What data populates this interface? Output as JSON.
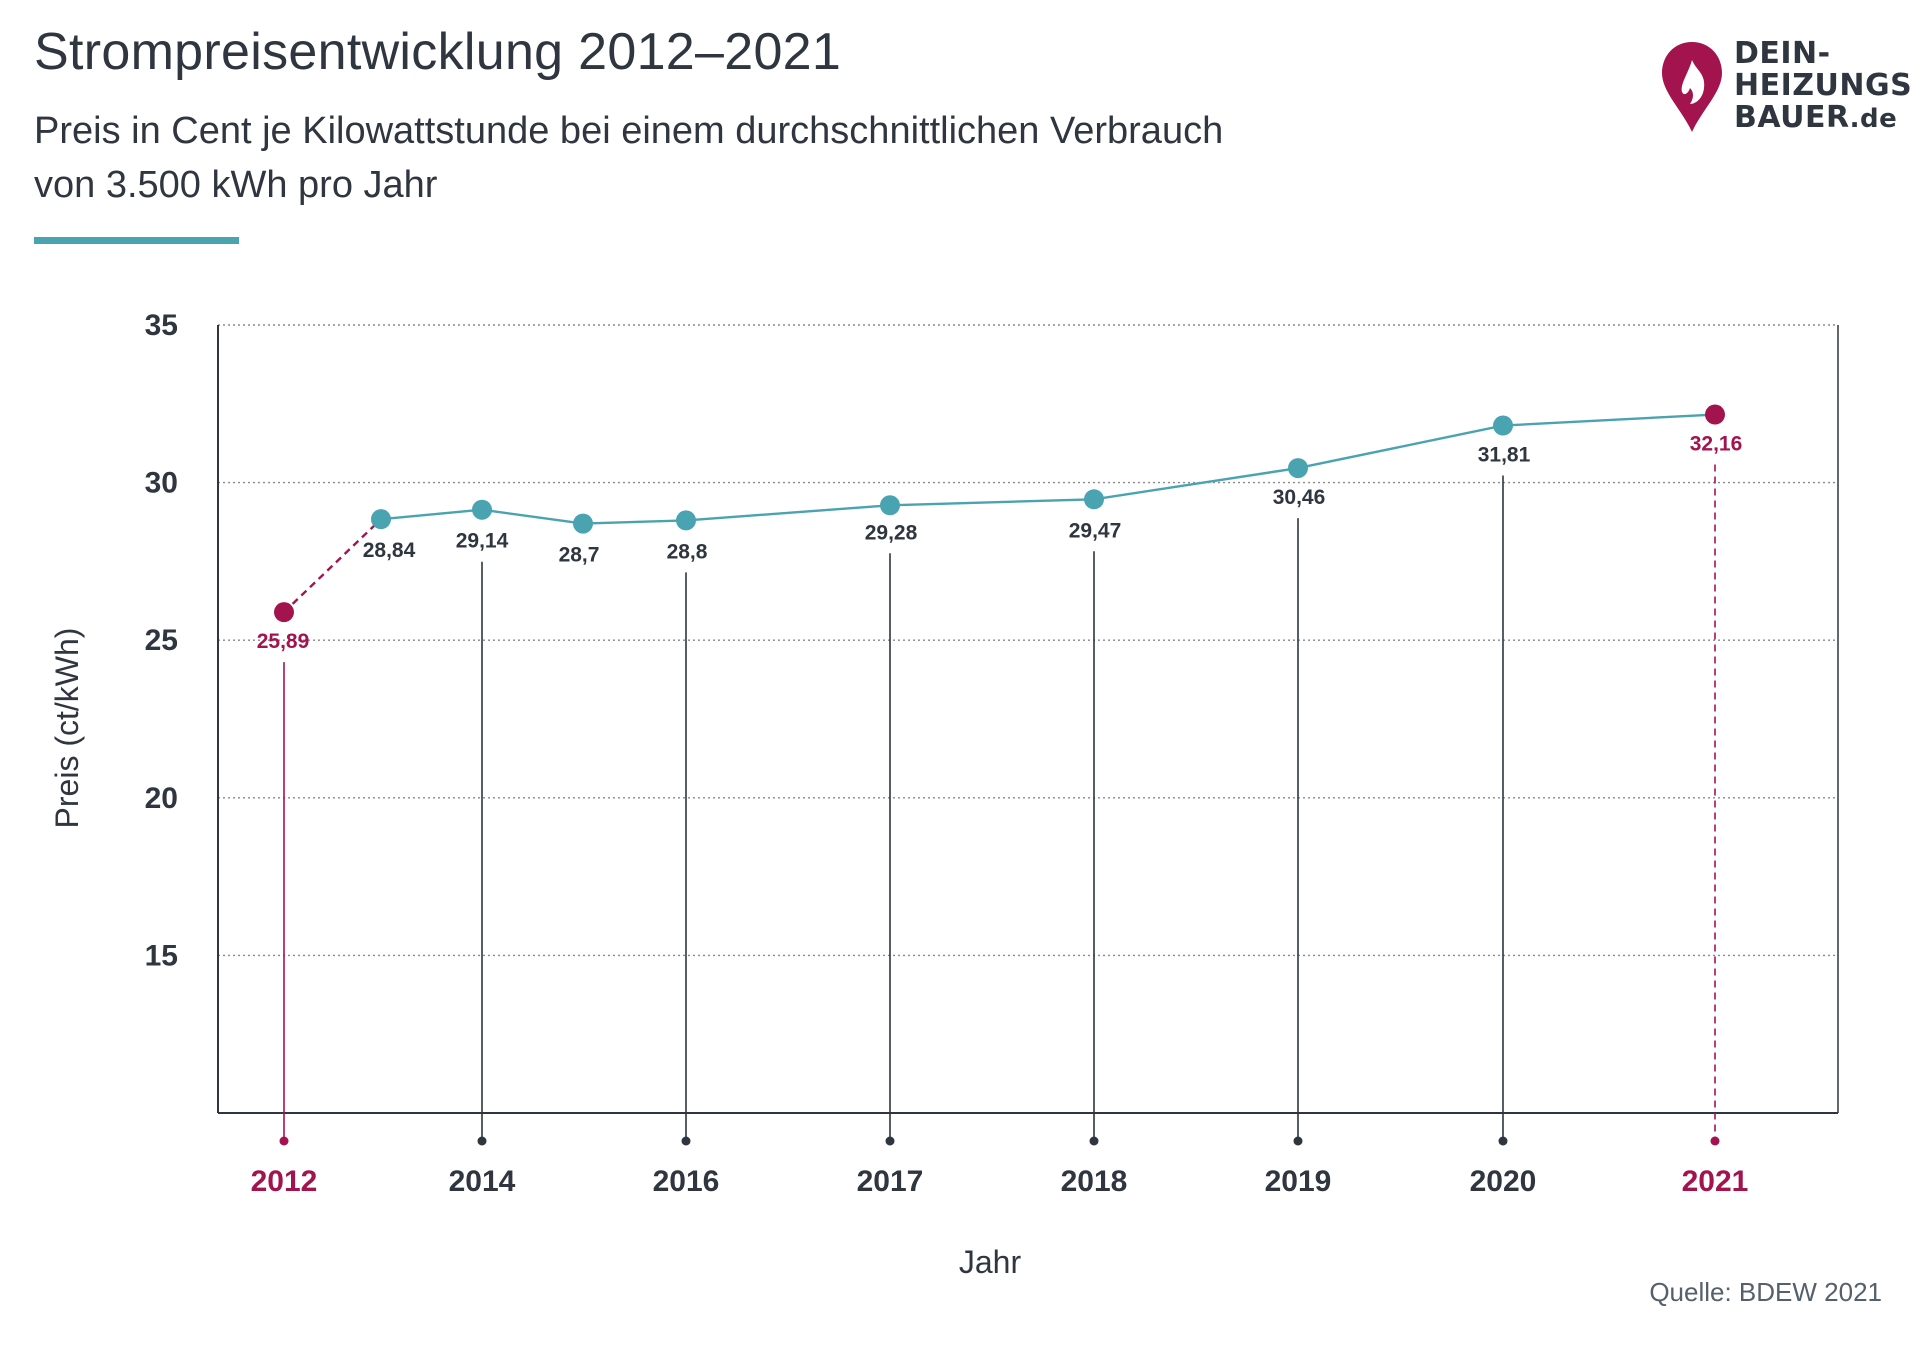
{
  "header": {
    "title": "Strompreisentwicklung 2012–2021",
    "subtitle_line1": "Preis in Cent je Kilowattstunde bei einem durchschnittlichen Verbrauch",
    "subtitle_line2": "von 3.500 kWh pro Jahr"
  },
  "logo": {
    "line1": "DEIN-",
    "line2": "HEIZUNGS",
    "line3": "BAUER",
    "tld": ".de",
    "icon": "flame-location-pin-icon"
  },
  "source": "Quelle: BDEW 2021",
  "colors": {
    "accent": "#4aa3b0",
    "highlight": "#a3144f",
    "text": "#2f3640",
    "grid": "#8a8a8a"
  },
  "chart_data": {
    "type": "line",
    "xlabel": "Jahr",
    "ylabel": "Preis (ct/kWh)",
    "ylim": [
      10,
      35
    ],
    "y_ticks": [
      35,
      30,
      25,
      20,
      15
    ],
    "grid": true,
    "x_tick_labels": [
      "2012",
      "2014",
      "2016",
      "2017",
      "2018",
      "2019",
      "2020",
      "2021"
    ],
    "highlighted_years": [
      "2012",
      "2021"
    ],
    "points": [
      {
        "x": "2012",
        "y": 25.89,
        "label": "25,89",
        "highlight": true
      },
      {
        "x": "2013",
        "y": 28.84,
        "label": "28,84"
      },
      {
        "x": "2014",
        "y": 29.14,
        "label": "29,14"
      },
      {
        "x": "2015",
        "y": 28.7,
        "label": "28,7"
      },
      {
        "x": "2016",
        "y": 28.8,
        "label": "28,8"
      },
      {
        "x": "2017",
        "y": 29.28,
        "label": "29,28"
      },
      {
        "x": "2018",
        "y": 29.47,
        "label": "29,47"
      },
      {
        "x": "2019",
        "y": 30.46,
        "label": "30,46"
      },
      {
        "x": "2020",
        "y": 31.81,
        "label": "31,81"
      },
      {
        "x": "2021",
        "y": 32.16,
        "label": "32,16",
        "highlight": true
      }
    ]
  }
}
